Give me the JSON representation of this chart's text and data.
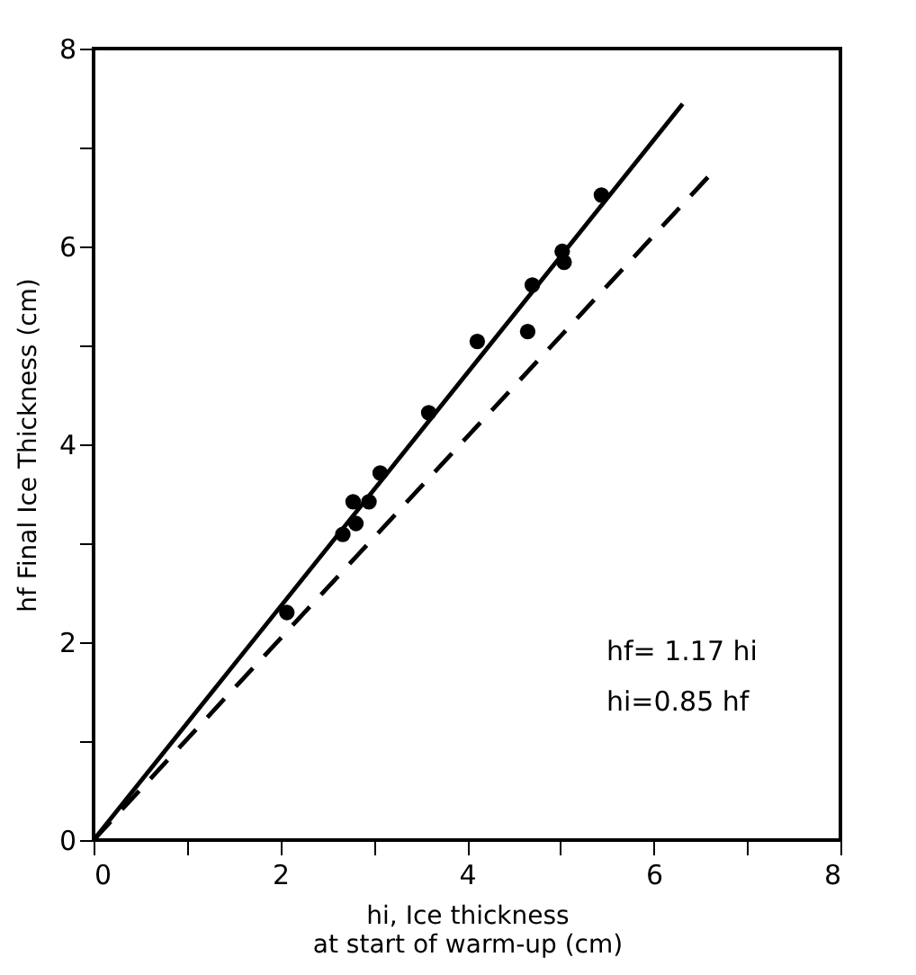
{
  "chart_data": {
    "type": "scatter",
    "xlabel": "hi, Ice thickness\nat start of warm-up (cm)",
    "ylabel": "hf Final Ice Thickness (cm)",
    "xlim": [
      0,
      8
    ],
    "ylim": [
      0,
      8
    ],
    "xticks": [
      0,
      {
        "value": 1,
        "label": null
      },
      2,
      {
        "value": 3,
        "label": null
      },
      4,
      {
        "value": 5,
        "label": null
      },
      6,
      {
        "value": 7,
        "label": null
      },
      8
    ],
    "yticks": [
      0,
      {
        "value": 1,
        "label": null
      },
      2,
      {
        "value": 3,
        "label": null
      },
      4,
      {
        "value": 5,
        "label": null
      },
      6,
      {
        "value": 7,
        "label": null
      },
      8
    ],
    "grid": false,
    "annotations": [
      "hf= 1.17 hi",
      "hi=0.85 hf"
    ],
    "series": [
      {
        "marker": "circle",
        "color": "#000000",
        "x": [
          2.07,
          2.67,
          2.78,
          2.81,
          2.95,
          3.07,
          3.59,
          4.11,
          4.65,
          4.7,
          5.02,
          5.04,
          5.44
        ],
        "values": [
          2.3,
          3.09,
          3.42,
          3.2,
          3.42,
          3.71,
          4.32,
          5.04,
          5.14,
          5.61,
          5.95,
          5.84,
          6.52
        ]
      },
      {
        "type": "line",
        "color": "#000000",
        "line_style": "solid",
        "x": [
          0,
          6.31
        ],
        "values": [
          0,
          7.44
        ]
      },
      {
        "type": "line",
        "color": "#000000",
        "line_style": "dashed",
        "x": [
          0,
          6.58
        ],
        "values": [
          0,
          6.7
        ]
      }
    ]
  }
}
